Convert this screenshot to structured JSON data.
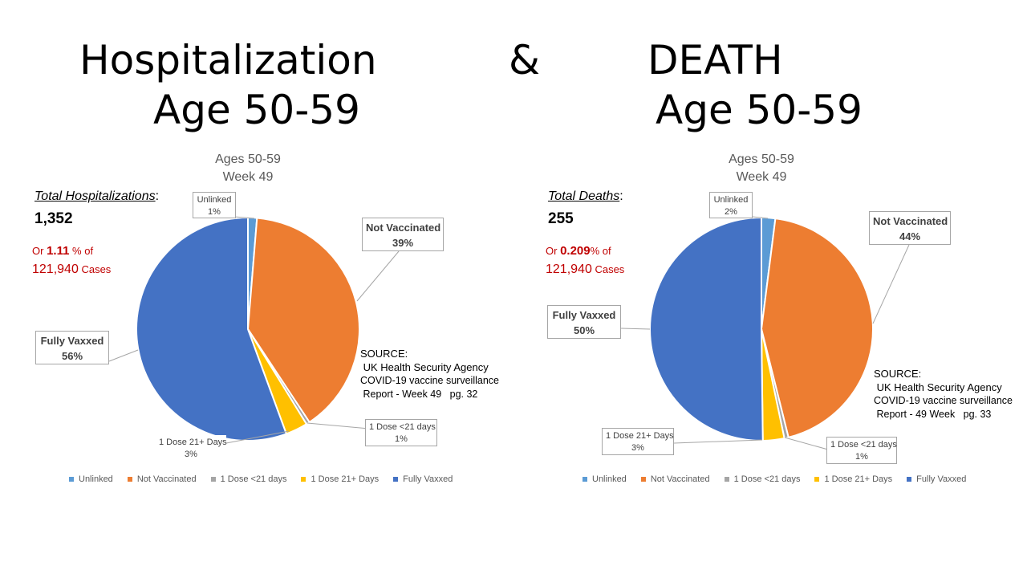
{
  "titles": {
    "hosp": "Hospitalization",
    "hosp_age": "Age 50-59",
    "amp": "&",
    "death": "DEATH",
    "death_age": "Age  50-59"
  },
  "left": {
    "total_label": "Total Hospitalizations",
    "total_value": "1,352",
    "pct_prefix": "Or ",
    "pct_value": "1.11",
    "pct_suffix": " % of",
    "cases_value": "121,940",
    "cases_label": " Cases",
    "source_lines": [
      "SOURCE:",
      " UK Health Security Agency",
      "COVID-19 vaccine surveillance",
      " Report - Week 49   pg. 32"
    ]
  },
  "right": {
    "total_label": "Total Deaths",
    "total_value": "255",
    "pct_prefix": "Or ",
    "pct_value": "0.209",
    "pct_suffix": "% of",
    "cases_value": "121,940",
    "cases_label": " Cases",
    "source_lines": [
      "SOURCE:",
      " UK Health Security Agency",
      "COVID-19 vaccine surveillance",
      " Report - 49 Week   pg. 33"
    ]
  },
  "chart_data": [
    {
      "type": "pie",
      "title_lines": [
        "Ages 50-59",
        "Week 49"
      ],
      "categories": [
        "Unlinked",
        "Not Vaccinated",
        "1 Dose <21 days",
        "1 Dose 21+ Days",
        "Fully Vaxxed"
      ],
      "values": [
        1.3,
        39.4,
        0.5,
        3.2,
        55.6
      ],
      "labels": [
        "Unlinked\n1%",
        "Not Vaccinated\n39%",
        "1 Dose <21 days\n1%",
        "1 Dose 21+ Days\n3%",
        "Fully Vaxxed\n56%"
      ],
      "colors": [
        "#5b9bd5",
        "#ed7d31",
        "#a5a5a5",
        "#ffc000",
        "#4472c4"
      ],
      "legend": "bottom"
    },
    {
      "type": "pie",
      "title_lines": [
        "Ages 50-59",
        "Week 49"
      ],
      "categories": [
        "Unlinked",
        "Not Vaccinated",
        "1 Dose <21 days",
        "1 Dose 21+ Days",
        "Fully Vaxxed"
      ],
      "values": [
        2.0,
        44.1,
        0.6,
        3.1,
        50.2
      ],
      "labels": [
        "Unlinked\n2%",
        "Not Vaccinated\n44%",
        "1 Dose <21 days\n1%",
        "1 Dose 21+ Days\n3%",
        "Fully Vaxxed\n50%"
      ],
      "colors": [
        "#5b9bd5",
        "#ed7d31",
        "#a5a5a5",
        "#ffc000",
        "#4472c4"
      ],
      "legend": "bottom"
    }
  ]
}
